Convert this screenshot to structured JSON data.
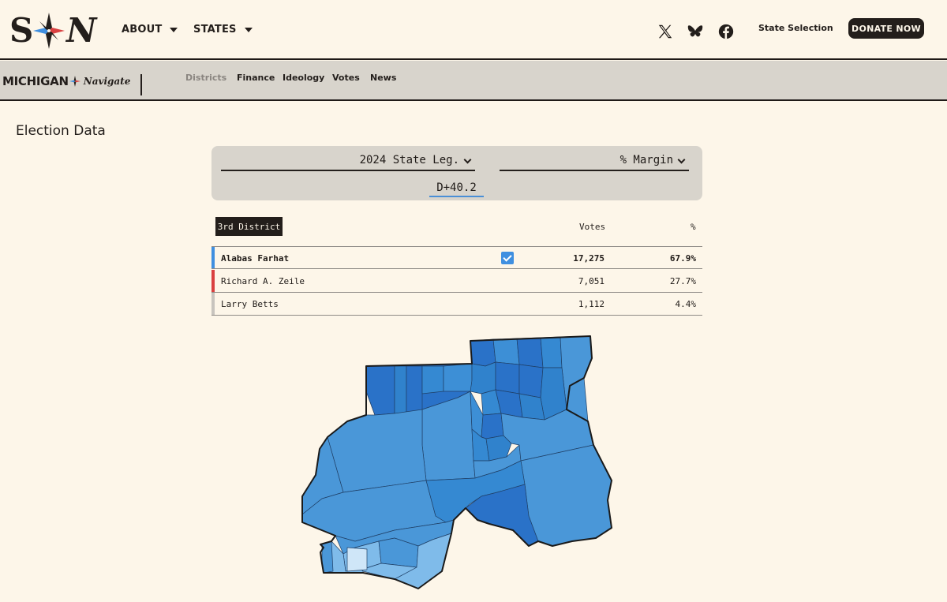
{
  "header": {
    "logo_left": "S",
    "logo_right": "N",
    "nav": [
      {
        "label": "ABOUT"
      },
      {
        "label": "STATES"
      }
    ],
    "social_icons": [
      "x-icon",
      "bluesky-icon",
      "facebook-icon"
    ],
    "state_selection_label": "State Selection",
    "donate_label": "DONATE NOW"
  },
  "subnav": {
    "state_name": "MICHIGAN",
    "brand_script": "Navigate",
    "tabs": [
      {
        "label": "Districts",
        "active": true
      },
      {
        "label": "Finance",
        "active": false
      },
      {
        "label": "Ideology",
        "active": false
      },
      {
        "label": "Votes",
        "active": false
      },
      {
        "label": "News",
        "active": false
      }
    ]
  },
  "main": {
    "section_title": "Election Data",
    "election_select": "2024 State Leg.",
    "metric_select": "% Margin",
    "margin_value": "D+40.2",
    "district_label": "3rd District",
    "columns": {
      "votes": "Votes",
      "pct": "%"
    },
    "candidates": [
      {
        "name": "Alabas Farhat",
        "votes": "17,275",
        "pct": "67.9%",
        "party_color": "#3f8fe0",
        "winner": true
      },
      {
        "name": "Richard A. Zeile",
        "votes": "7,051",
        "pct": "27.7%",
        "party_color": "#d94040",
        "winner": false
      },
      {
        "name": "Larry Betts",
        "votes": "1,112",
        "pct": "4.4%",
        "party_color": "#c8c4be",
        "winner": false
      }
    ]
  },
  "colors": {
    "background": "#fdf6e9",
    "dark": "#231e1b",
    "subnav_bg": "#d8d4cc",
    "dem_dark": "#2a72c8",
    "dem_mid": "#4a97d8",
    "dem_light": "#7fbbea",
    "dem_lightest": "#cfe6f8"
  }
}
